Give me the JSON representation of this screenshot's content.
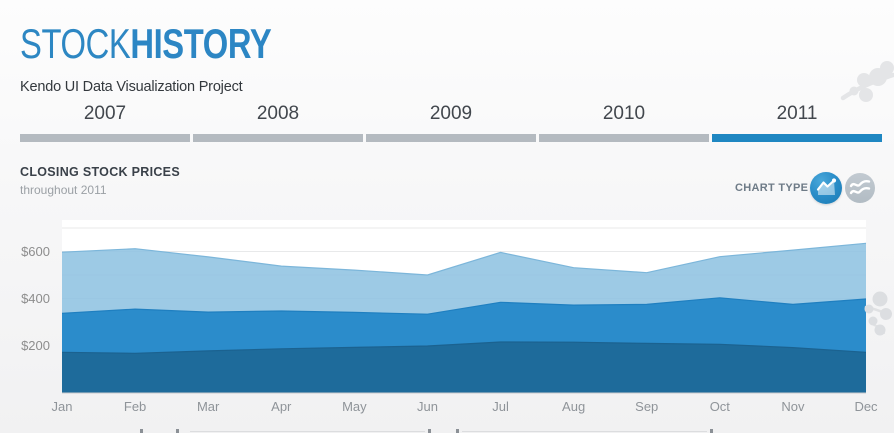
{
  "header": {
    "title_regular": "STOCK",
    "title_bold": "HISTORY",
    "subtitle": "Kendo UI Data Visualization Project"
  },
  "tabs": {
    "selected": "2011",
    "items": [
      {
        "label": "2007"
      },
      {
        "label": "2008"
      },
      {
        "label": "2009"
      },
      {
        "label": "2010"
      },
      {
        "label": "2011"
      }
    ]
  },
  "section": {
    "chart_type_label": "CHART TYPE",
    "chart_type_options": [
      {
        "icon": "area-chart-icon",
        "selected": true
      },
      {
        "icon": "line-chart-icon",
        "selected": false
      }
    ]
  },
  "colors": {
    "accent_blue": "#1f87c2",
    "title_blue": "#2d87c3",
    "tab_bar_gray": "#b4bac0",
    "area_light": "#8ec2e1",
    "area_medium": "#2689ca",
    "area_dark": "#1e6b9b",
    "selected_button": "#2b8ec9",
    "inactive_button": "#b9c2ca"
  },
  "chart_data": {
    "type": "area",
    "title": "CLOSING STOCK PRICES",
    "subtitle": "throughout 2011",
    "categories": [
      "Jan",
      "Feb",
      "Mar",
      "Apr",
      "May",
      "Jun",
      "Jul",
      "Aug",
      "Sep",
      "Oct",
      "Nov",
      "Dec"
    ],
    "series": [
      {
        "id": "area-top-light-blue",
        "color": "#8ec2e1",
        "stroke": "#7cb6da",
        "values": [
          597,
          612,
          577,
          538,
          521,
          500,
          596,
          531,
          510,
          578,
          606,
          635
        ]
      },
      {
        "id": "area-middle-blue",
        "color": "#2689ca",
        "stroke": "#1f7fc0",
        "values": [
          337,
          355,
          342,
          347,
          341,
          333,
          384,
          372,
          375,
          403,
          375,
          398
        ]
      },
      {
        "id": "area-bottom-dark-blue",
        "color": "#1e6b9b",
        "stroke": "#1b6290",
        "values": [
          171,
          167,
          177,
          186,
          192,
          198,
          215,
          214,
          209,
          205,
          191,
          171
        ]
      }
    ],
    "xlabel": "",
    "ylabel": "",
    "y_ticks": [
      {
        "label": "$200",
        "value": 200
      },
      {
        "label": "$400",
        "value": 400
      },
      {
        "label": "$600",
        "value": 600
      }
    ],
    "ylim": [
      0,
      700
    ],
    "grid": "horizontal every 100, labels every 200",
    "legend_position": "below (cut off at bottom edge)"
  }
}
